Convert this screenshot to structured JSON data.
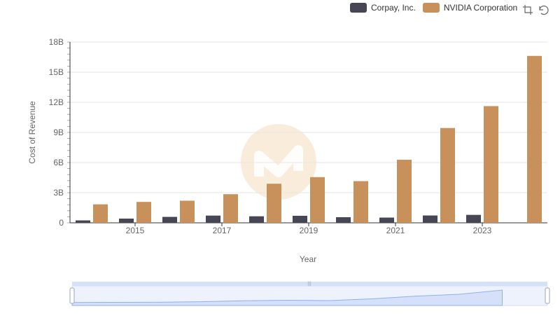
{
  "chart_data": {
    "type": "bar",
    "title": "",
    "xlabel": "Year",
    "ylabel": "Cost of Revenue",
    "ylim": [
      0,
      18000000000
    ],
    "yticks": [
      0,
      3000000000,
      6000000000,
      9000000000,
      12000000000,
      15000000000,
      18000000000
    ],
    "ytick_labels": [
      "0",
      "3B",
      "6B",
      "9B",
      "12B",
      "15B",
      "18B"
    ],
    "categories": [
      "2014",
      "2015",
      "2016",
      "2017",
      "2018",
      "2019",
      "2020",
      "2021",
      "2022",
      "2023",
      "2024"
    ],
    "xtick_labels": [
      "2015",
      "2017",
      "2019",
      "2021",
      "2023"
    ],
    "series": [
      {
        "name": "Corpay, Inc.",
        "color": "#464655",
        "values": [
          240000000,
          420000000,
          590000000,
          720000000,
          650000000,
          700000000,
          560000000,
          520000000,
          730000000,
          790000000,
          null
        ]
      },
      {
        "name": "NVIDIA Corporation",
        "color": "#c8915c",
        "values": [
          1840000000,
          2080000000,
          2200000000,
          2850000000,
          3890000000,
          4550000000,
          4150000000,
          6280000000,
          9440000000,
          11620000000,
          16620000000
        ]
      }
    ],
    "legend_position": "top-right",
    "grid": true
  },
  "legend": {
    "items": [
      {
        "label": "Corpay, Inc.",
        "color": "#464655"
      },
      {
        "label": "NVIDIA Corporation",
        "color": "#c8915c"
      }
    ]
  },
  "toolbar": {
    "icons": [
      "zoom-select-icon",
      "zoom-reset-icon"
    ]
  },
  "watermark": {
    "icon": "watermark-logo-icon",
    "color": "#f5dcbc"
  },
  "datazoom": {
    "fill": "#d6e0f8",
    "stroke": "#8fb0f0"
  }
}
